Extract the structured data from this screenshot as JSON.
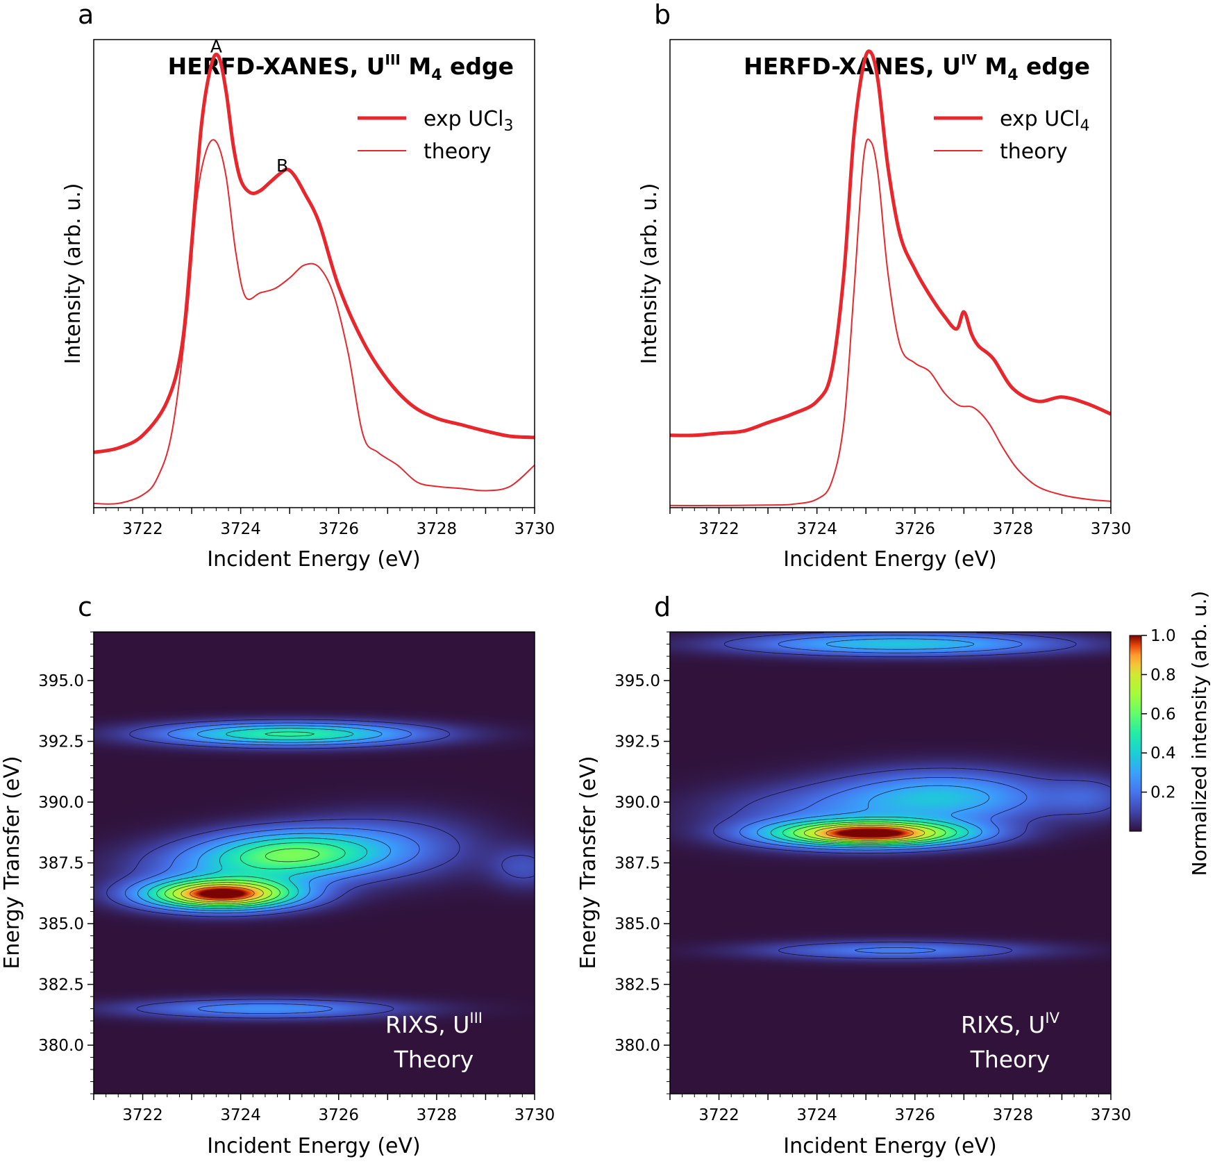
{
  "chart_data": [
    {
      "panel_label": "a",
      "type": "line",
      "title_parts": [
        "HERFD-XANES, U",
        "III",
        " M",
        "4",
        " edge"
      ],
      "xlabel": "Incident Energy (eV)",
      "ylabel": "Intensity (arb. u.)",
      "xlim": [
        3721,
        3730
      ],
      "ylim": [
        0,
        1.1
      ],
      "xticks": [
        "3722",
        "3724",
        "3726",
        "3728",
        "3730"
      ],
      "legend": [
        {
          "parts": [
            "exp UCl",
            "3"
          ],
          "style": "thick"
        },
        {
          "parts": [
            "theory"
          ],
          "style": "thin"
        }
      ],
      "annotations": [
        {
          "text": "A",
          "x": 3723.5,
          "y": 1.07
        },
        {
          "text": "B",
          "x": 3724.85,
          "y": 0.79
        }
      ],
      "series": [
        {
          "style": "thick",
          "color": "#e8262b",
          "x": [
            3721,
            3721.5,
            3722,
            3722.5,
            3722.8,
            3723.0,
            3723.2,
            3723.4,
            3723.55,
            3723.7,
            3723.85,
            3724.0,
            3724.2,
            3724.4,
            3724.6,
            3724.8,
            3724.95,
            3725.1,
            3725.3,
            3725.6,
            3726.0,
            3726.5,
            3727.0,
            3727.5,
            3728.0,
            3728.5,
            3729.0,
            3729.5,
            3730
          ],
          "y": [
            0.13,
            0.14,
            0.17,
            0.25,
            0.38,
            0.62,
            0.9,
            1.04,
            1.06,
            0.98,
            0.85,
            0.77,
            0.74,
            0.745,
            0.765,
            0.785,
            0.795,
            0.78,
            0.74,
            0.67,
            0.52,
            0.39,
            0.3,
            0.24,
            0.21,
            0.195,
            0.18,
            0.168,
            0.165
          ]
        },
        {
          "style": "thin",
          "color": "#e8262b",
          "x": [
            3721,
            3721.5,
            3722,
            3722.3,
            3722.6,
            3722.9,
            3723.1,
            3723.3,
            3723.5,
            3723.7,
            3723.9,
            3724.1,
            3724.4,
            3724.7,
            3725.0,
            3725.3,
            3725.6,
            3725.9,
            3726.2,
            3726.5,
            3726.8,
            3727.2,
            3727.6,
            3728.0,
            3728.5,
            3729.0,
            3729.5,
            3730
          ],
          "y": [
            0.01,
            0.01,
            0.03,
            0.07,
            0.18,
            0.45,
            0.72,
            0.84,
            0.86,
            0.78,
            0.6,
            0.495,
            0.505,
            0.515,
            0.54,
            0.57,
            0.565,
            0.5,
            0.36,
            0.17,
            0.13,
            0.1,
            0.06,
            0.05,
            0.045,
            0.04,
            0.05,
            0.1
          ]
        }
      ]
    },
    {
      "panel_label": "b",
      "type": "line",
      "title_parts": [
        "HERFD-XANES, U",
        "IV",
        " M",
        "4",
        " edge"
      ],
      "xlabel": "Incident Energy (eV)",
      "ylabel": "Intensity (arb. u.)",
      "xlim": [
        3721,
        3730
      ],
      "ylim": [
        0,
        1.1
      ],
      "xticks": [
        "3722",
        "3724",
        "3726",
        "3728",
        "3730"
      ],
      "legend": [
        {
          "parts": [
            "exp UCl",
            "4"
          ],
          "style": "thick"
        },
        {
          "parts": [
            "theory"
          ],
          "style": "thin"
        }
      ],
      "annotations": [],
      "series": [
        {
          "style": "thick",
          "color": "#e8262b",
          "x": [
            3721,
            3721.5,
            3722,
            3722.5,
            3723,
            3723.5,
            3724.0,
            3724.3,
            3724.55,
            3724.75,
            3724.95,
            3725.1,
            3725.25,
            3725.45,
            3725.7,
            3726.0,
            3726.3,
            3726.6,
            3726.85,
            3727.0,
            3727.15,
            3727.3,
            3727.6,
            3728.0,
            3728.5,
            3729.0,
            3729.5,
            3730
          ],
          "y": [
            0.17,
            0.17,
            0.175,
            0.18,
            0.2,
            0.22,
            0.25,
            0.32,
            0.55,
            0.87,
            1.04,
            1.07,
            1.0,
            0.8,
            0.64,
            0.56,
            0.5,
            0.45,
            0.42,
            0.46,
            0.41,
            0.38,
            0.35,
            0.28,
            0.25,
            0.26,
            0.245,
            0.22
          ]
        },
        {
          "style": "thin",
          "color": "#e8262b",
          "x": [
            3721,
            3722,
            3723,
            3723.5,
            3724.0,
            3724.3,
            3724.55,
            3724.75,
            3724.95,
            3725.1,
            3725.25,
            3725.45,
            3725.7,
            3726.0,
            3726.3,
            3726.6,
            3726.9,
            3727.2,
            3727.5,
            3727.8,
            3728.1,
            3728.5,
            3729.0,
            3729.5,
            3730
          ],
          "y": [
            0.005,
            0.005,
            0.006,
            0.008,
            0.02,
            0.06,
            0.2,
            0.5,
            0.82,
            0.86,
            0.78,
            0.55,
            0.38,
            0.34,
            0.32,
            0.27,
            0.24,
            0.235,
            0.2,
            0.14,
            0.09,
            0.05,
            0.03,
            0.02,
            0.015
          ]
        }
      ]
    },
    {
      "panel_label": "c",
      "type": "heatmap",
      "xlabel": "Incident Energy (eV)",
      "ylabel": "Energy Transfer (eV)",
      "xlim": [
        3721,
        3730
      ],
      "ylim": [
        378,
        397
      ],
      "xticks": [
        "3722",
        "3724",
        "3726",
        "3728",
        "3730"
      ],
      "yticks": [
        "380.0",
        "382.5",
        "385.0",
        "387.5",
        "390.0",
        "392.5",
        "395.0"
      ],
      "overlay_lines": [
        [
          "RIXS, U",
          "III"
        ],
        [
          "Theory"
        ]
      ],
      "peaks": [
        {
          "x": 3723.6,
          "y": 386.2,
          "sx": 1.05,
          "sy": 0.42,
          "a": 1.0
        },
        {
          "x": 3725.1,
          "y": 387.9,
          "sx": 1.2,
          "sy": 0.65,
          "a": 0.48
        },
        {
          "x": 3723.8,
          "y": 387.3,
          "sx": 1.4,
          "sy": 0.75,
          "a": 0.22
        },
        {
          "x": 3727.0,
          "y": 388.2,
          "sx": 1.3,
          "sy": 0.9,
          "a": 0.17
        },
        {
          "x": 3725.0,
          "y": 392.8,
          "sx": 1.8,
          "sy": 0.33,
          "a": 0.52
        },
        {
          "x": 3724.5,
          "y": 381.5,
          "sx": 1.9,
          "sy": 0.28,
          "a": 0.26
        },
        {
          "x": 3729.8,
          "y": 387.3,
          "sx": 0.5,
          "sy": 0.6,
          "a": 0.12
        }
      ]
    },
    {
      "panel_label": "d",
      "type": "heatmap",
      "xlabel": "Incident Energy (eV)",
      "ylabel": "Energy Transfer (eV)",
      "xlim": [
        3721,
        3730
      ],
      "ylim": [
        378,
        397
      ],
      "xticks": [
        "3722",
        "3724",
        "3726",
        "3728",
        "3730"
      ],
      "yticks": [
        "380.0",
        "382.5",
        "385.0",
        "387.5",
        "390.0",
        "392.5",
        "395.0"
      ],
      "overlay_lines": [
        [
          "RIXS, U",
          "IV"
        ],
        [
          "Theory"
        ]
      ],
      "colorbar": {
        "label": "Normalized intensity (arb. u.)",
        "ticks": [
          "0.2",
          "0.4",
          "0.6",
          "0.8",
          "1.0"
        ],
        "range": [
          0,
          1
        ]
      },
      "peaks": [
        {
          "x": 3725.1,
          "y": 388.7,
          "sx": 1.35,
          "sy": 0.36,
          "a": 1.0
        },
        {
          "x": 3726.6,
          "y": 390.2,
          "sx": 1.5,
          "sy": 0.75,
          "a": 0.35
        },
        {
          "x": 3724.0,
          "y": 389.5,
          "sx": 1.6,
          "sy": 0.8,
          "a": 0.15
        },
        {
          "x": 3725.7,
          "y": 396.5,
          "sx": 2.2,
          "sy": 0.32,
          "a": 0.38
        },
        {
          "x": 3725.6,
          "y": 383.9,
          "sx": 1.9,
          "sy": 0.27,
          "a": 0.22
        },
        {
          "x": 3729.6,
          "y": 390.2,
          "sx": 0.6,
          "sy": 0.6,
          "a": 0.12
        }
      ]
    }
  ]
}
